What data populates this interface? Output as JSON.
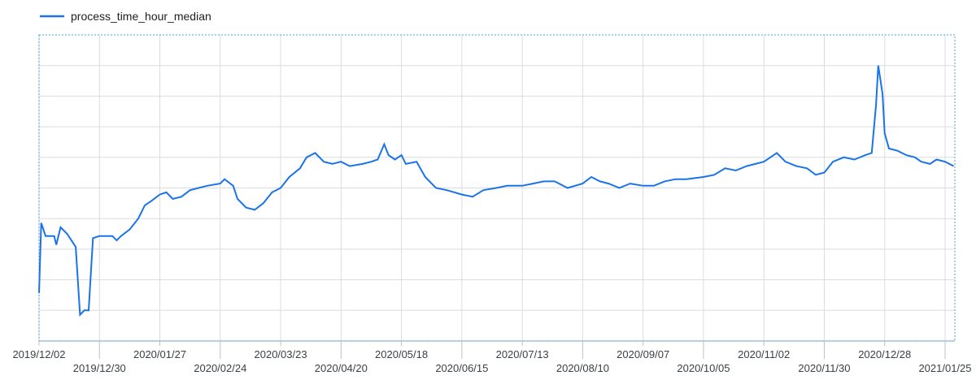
{
  "chart_data": {
    "type": "line",
    "legend_position": "top-left",
    "grid": true,
    "colors": {
      "series": "#1a73e8",
      "grid": "#dadce0",
      "plot_border": "#4aa3df"
    },
    "x_ticks": [
      {
        "label": "2019/12/02",
        "row": 1
      },
      {
        "label": "2019/12/30",
        "row": 2
      },
      {
        "label": "2020/01/27",
        "row": 1
      },
      {
        "label": "2020/02/24",
        "row": 2
      },
      {
        "label": "2020/03/23",
        "row": 1
      },
      {
        "label": "2020/04/20",
        "row": 2
      },
      {
        "label": "2020/05/18",
        "row": 1
      },
      {
        "label": "2020/06/15",
        "row": 2
      },
      {
        "label": "2020/07/13",
        "row": 1
      },
      {
        "label": "2020/08/10",
        "row": 2
      },
      {
        "label": "2020/09/07",
        "row": 1
      },
      {
        "label": "2020/10/05",
        "row": 2
      },
      {
        "label": "2020/11/02",
        "row": 1
      },
      {
        "label": "2020/11/30",
        "row": 2
      },
      {
        "label": "2020/12/28",
        "row": 1
      },
      {
        "label": "2021/01/25",
        "row": 2
      }
    ],
    "y_gridlines": 10,
    "series": [
      {
        "name": "process_time_hour_median",
        "points": [
          [
            "2019/12/02",
            2.2
          ],
          [
            "2019/12/03",
            5.4
          ],
          [
            "2019/12/05",
            4.8
          ],
          [
            "2019/12/09",
            4.8
          ],
          [
            "2019/12/10",
            4.4
          ],
          [
            "2019/12/12",
            5.2
          ],
          [
            "2019/12/15",
            4.9
          ],
          [
            "2019/12/17",
            4.6
          ],
          [
            "2019/12/19",
            4.3
          ],
          [
            "2019/12/21",
            1.2
          ],
          [
            "2019/12/23",
            1.4
          ],
          [
            "2019/12/25",
            1.4
          ],
          [
            "2019/12/27",
            4.7
          ],
          [
            "2019/12/30",
            4.8
          ],
          [
            "2020/01/05",
            4.8
          ],
          [
            "2020/01/07",
            4.6
          ],
          [
            "2020/01/09",
            4.8
          ],
          [
            "2020/01/13",
            5.1
          ],
          [
            "2020/01/17",
            5.6
          ],
          [
            "2020/01/20",
            6.2
          ],
          [
            "2020/01/23",
            6.4
          ],
          [
            "2020/01/27",
            6.7
          ],
          [
            "2020/01/30",
            6.8
          ],
          [
            "2020/02/02",
            6.5
          ],
          [
            "2020/02/06",
            6.6
          ],
          [
            "2020/02/10",
            6.9
          ],
          [
            "2020/02/14",
            7.0
          ],
          [
            "2020/02/18",
            7.1
          ],
          [
            "2020/02/24",
            7.2
          ],
          [
            "2020/02/26",
            7.4
          ],
          [
            "2020/03/01",
            7.1
          ],
          [
            "2020/03/03",
            6.5
          ],
          [
            "2020/03/07",
            6.1
          ],
          [
            "2020/03/11",
            6.0
          ],
          [
            "2020/03/15",
            6.3
          ],
          [
            "2020/03/19",
            6.8
          ],
          [
            "2020/03/23",
            7.0
          ],
          [
            "2020/03/27",
            7.5
          ],
          [
            "2020/04/01",
            7.9
          ],
          [
            "2020/04/04",
            8.4
          ],
          [
            "2020/04/08",
            8.6
          ],
          [
            "2020/04/12",
            8.2
          ],
          [
            "2020/04/16",
            8.1
          ],
          [
            "2020/04/20",
            8.2
          ],
          [
            "2020/04/24",
            8.0
          ],
          [
            "2020/04/30",
            8.1
          ],
          [
            "2020/05/04",
            8.2
          ],
          [
            "2020/05/07",
            8.3
          ],
          [
            "2020/05/10",
            9.0
          ],
          [
            "2020/05/12",
            8.5
          ],
          [
            "2020/05/15",
            8.3
          ],
          [
            "2020/05/18",
            8.5
          ],
          [
            "2020/05/20",
            8.1
          ],
          [
            "2020/05/25",
            8.2
          ],
          [
            "2020/05/29",
            7.5
          ],
          [
            "2020/06/03",
            7.0
          ],
          [
            "2020/06/08",
            6.9
          ],
          [
            "2020/06/15",
            6.7
          ],
          [
            "2020/06/20",
            6.6
          ],
          [
            "2020/06/25",
            6.9
          ],
          [
            "2020/07/01",
            7.0
          ],
          [
            "2020/07/06",
            7.1
          ],
          [
            "2020/07/13",
            7.1
          ],
          [
            "2020/07/18",
            7.2
          ],
          [
            "2020/07/23",
            7.3
          ],
          [
            "2020/07/28",
            7.3
          ],
          [
            "2020/08/03",
            7.0
          ],
          [
            "2020/08/10",
            7.2
          ],
          [
            "2020/08/14",
            7.5
          ],
          [
            "2020/08/18",
            7.3
          ],
          [
            "2020/08/22",
            7.2
          ],
          [
            "2020/08/27",
            7.0
          ],
          [
            "2020/09/01",
            7.2
          ],
          [
            "2020/09/07",
            7.1
          ],
          [
            "2020/09/12",
            7.1
          ],
          [
            "2020/09/17",
            7.3
          ],
          [
            "2020/09/22",
            7.4
          ],
          [
            "2020/09/27",
            7.4
          ],
          [
            "2020/10/05",
            7.5
          ],
          [
            "2020/10/10",
            7.6
          ],
          [
            "2020/10/15",
            7.9
          ],
          [
            "2020/10/20",
            7.8
          ],
          [
            "2020/10/25",
            8.0
          ],
          [
            "2020/11/02",
            8.2
          ],
          [
            "2020/11/05",
            8.4
          ],
          [
            "2020/11/08",
            8.6
          ],
          [
            "2020/11/12",
            8.2
          ],
          [
            "2020/11/17",
            8.0
          ],
          [
            "2020/11/22",
            7.9
          ],
          [
            "2020/11/26",
            7.6
          ],
          [
            "2020/11/30",
            7.7
          ],
          [
            "2020/12/04",
            8.2
          ],
          [
            "2020/12/09",
            8.4
          ],
          [
            "2020/12/14",
            8.3
          ],
          [
            "2020/12/19",
            8.5
          ],
          [
            "2020/12/22",
            8.6
          ],
          [
            "2020/12/24",
            10.8
          ],
          [
            "2020/12/25",
            12.6
          ],
          [
            "2020/12/27",
            11.3
          ],
          [
            "2020/12/28",
            9.5
          ],
          [
            "2020/12/30",
            8.8
          ],
          [
            "2021/01/03",
            8.7
          ],
          [
            "2021/01/07",
            8.5
          ],
          [
            "2021/01/11",
            8.4
          ],
          [
            "2021/01/14",
            8.2
          ],
          [
            "2021/01/18",
            8.1
          ],
          [
            "2021/01/21",
            8.3
          ],
          [
            "2021/01/25",
            8.2
          ],
          [
            "2021/01/29",
            8.0
          ]
        ]
      }
    ]
  }
}
